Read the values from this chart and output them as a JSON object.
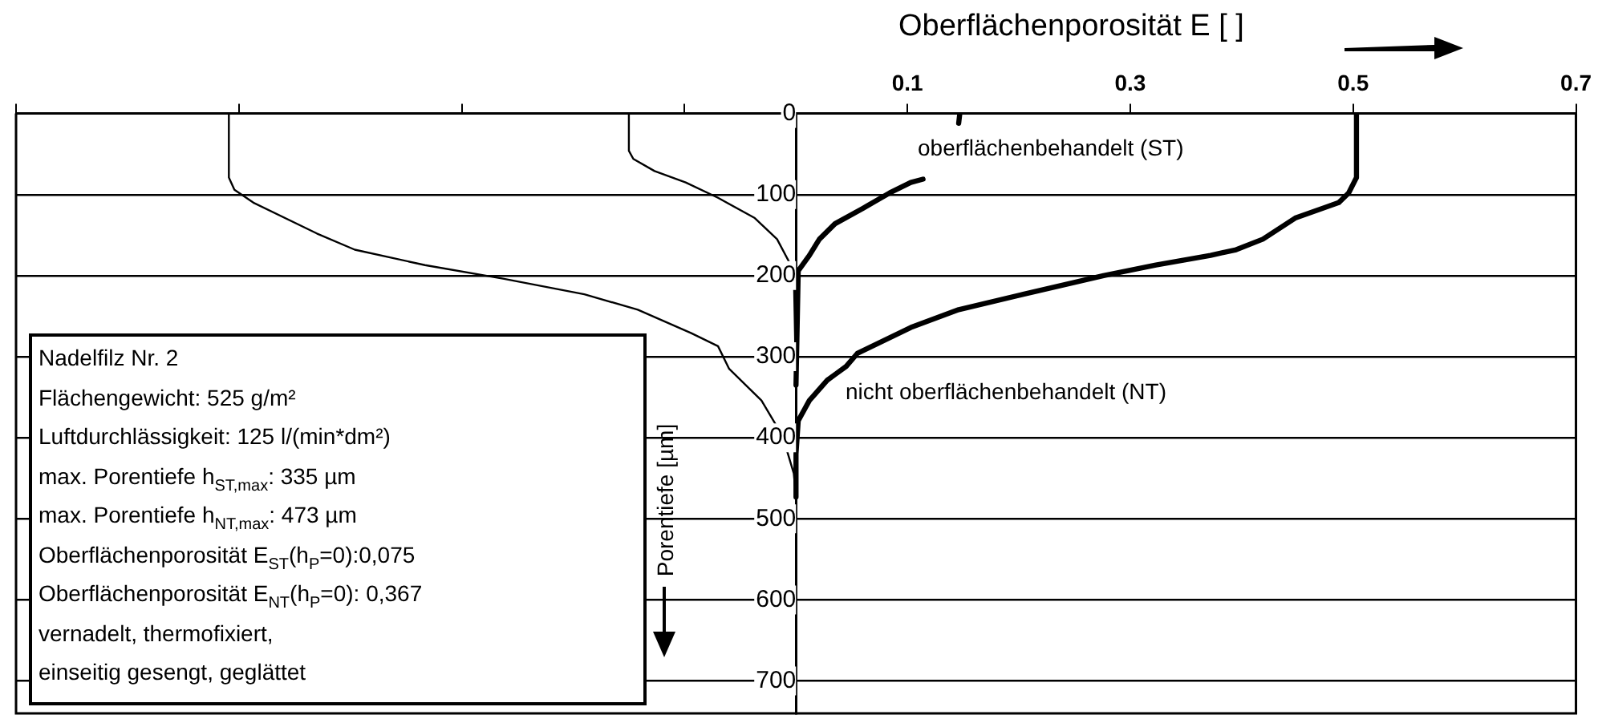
{
  "chart_data": {
    "type": "line",
    "xlabel": "Oberflächenporosität E [ ]",
    "ylabel": "Porentiefe [µm]",
    "xlim": [
      -0.7,
      0.7
    ],
    "xticks": [
      {
        "value": -0.7,
        "label": null
      },
      {
        "value": -0.5,
        "label": null
      },
      {
        "value": -0.3,
        "label": null
      },
      {
        "value": -0.1,
        "label": null
      },
      0.1,
      0.3,
      0.5,
      0.7
    ],
    "ylim": [
      740,
      0
    ],
    "yticks": [
      0,
      100,
      200,
      300,
      400,
      500,
      600,
      700
    ],
    "grid": "y",
    "legend": false,
    "marker": "none",
    "line_style": "solid",
    "series": [
      {
        "color": "#000000",
        "x": [
          0.503,
          0.503,
          0.496,
          0.487,
          0.448,
          0.419,
          0.395,
          0.372,
          0.323,
          0.276,
          0.204,
          0.146,
          0.103,
          0.055,
          0.045,
          0.035,
          0.028,
          0.012,
          0.002,
          0,
          0
        ],
        "values": [
          0,
          79,
          98,
          110,
          129,
          155,
          168,
          175,
          187,
          200,
          223,
          242,
          264,
          296,
          312,
          322,
          329,
          354,
          379,
          420,
          473
        ]
      },
      {
        "color": "#000000",
        "x": [
          0.147,
          0.146,
          0.13,
          0.114,
          0.103,
          0.084,
          0.06,
          0.035,
          0.021,
          0.012,
          0.002,
          0
        ],
        "values": [
          0,
          12,
          null,
          81,
          85,
          98,
          117,
          136,
          155,
          175,
          194,
          335
        ]
      },
      {
        "color": "#000000",
        "x": [
          -0.509,
          -0.509,
          -0.504,
          -0.487,
          -0.43,
          -0.396,
          -0.333,
          -0.262,
          -0.19,
          -0.142,
          -0.094,
          -0.07,
          -0.06,
          -0.031,
          -0.012,
          -0.002,
          0
        ],
        "values": [
          0,
          79,
          94,
          110,
          148,
          168,
          187,
          204,
          223,
          242,
          271,
          287,
          315,
          354,
          398,
          444,
          473
        ]
      },
      {
        "color": "#000000",
        "x": [
          -0.15,
          -0.15,
          -0.146,
          -0.127,
          -0.099,
          -0.07,
          -0.037,
          -0.017,
          -0.002,
          0
        ],
        "values": [
          0,
          46,
          56,
          71,
          85,
          104,
          129,
          155,
          194,
          335
        ]
      }
    ],
    "annotations": [
      "oberflächenbehandelt (ST)",
      "nicht oberflächenbehandelt (NT)",
      "Nadelfilz Nr. 2",
      "Flächengewicht: 525 g/m²",
      "Luftdurchlässigkeit: 125 l/(min*dm²)",
      "max. Porentiefe h$_{ST,max}$: 335 µm",
      "max. Porentiefe h$_{NT,max}$: 473 µm",
      "Oberflächenporosität E$_{ST}$(h$_{P}$=0):0,075",
      "Oberflächenporosität E$_{NT}$(h$_{P}$=0): 0,367",
      "vernadelt, thermofixiert,",
      "einseitig gesengt, geglättet"
    ]
  }
}
